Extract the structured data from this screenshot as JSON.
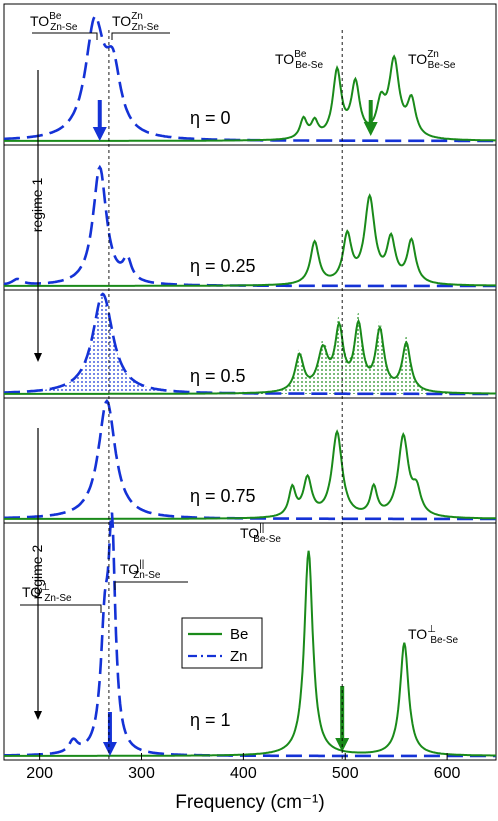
{
  "chart_data": {
    "type": "line",
    "xlabel": "Frequency (cm⁻¹)",
    "xlim": [
      165,
      648
    ],
    "x_ticks": [
      200,
      300,
      400,
      500,
      600
    ],
    "reference_line_x": [
      268,
      497
    ],
    "colors": {
      "Be": "#1a8a1a",
      "Zn": "#1432d6"
    },
    "legend": {
      "placement": "lower-center",
      "entries": [
        {
          "name": "Be",
          "style": "solid",
          "color": "#1a8a1a"
        },
        {
          "name": "Zn",
          "style": "dash-dot",
          "color": "#1432d6"
        }
      ]
    },
    "regimes": [
      {
        "label": "regime 1",
        "panels": [
          0,
          1,
          2
        ]
      },
      {
        "label": "regime 2",
        "panels": [
          3,
          4
        ]
      }
    ],
    "panels": [
      {
        "eta_label": "η = 0",
        "zn_peaks": [
          [
            254,
            1.0,
            11
          ],
          [
            272,
            0.55,
            9
          ]
        ],
        "be_peaks": [
          [
            459,
            0.22,
            4
          ],
          [
            470,
            0.18,
            4
          ],
          [
            492,
            0.75,
            5
          ],
          [
            510,
            0.6,
            5
          ],
          [
            535,
            0.35,
            5
          ],
          [
            548,
            0.85,
            6
          ],
          [
            565,
            0.4,
            5
          ]
        ],
        "zn_arrow_x": 259,
        "be_arrow_x": 525,
        "peak_labels": [
          {
            "base": "TO",
            "sup": "Be",
            "sub": "Zn-Se"
          },
          {
            "base": "TO",
            "sup": "Zn",
            "sub": "Zn-Se"
          },
          {
            "base": "TO",
            "sup": "Be",
            "sub": "Be-Se"
          },
          {
            "base": "TO",
            "sup": "Zn",
            "sub": "Be-Se"
          }
        ]
      },
      {
        "eta_label": "η = 0.25",
        "zn_peaks": [
          [
            259,
            1.0,
            8
          ],
          [
            286,
            0.18,
            5
          ],
          [
            178,
            0.05,
            6
          ]
        ],
        "be_peaks": [
          [
            470,
            0.45,
            5
          ],
          [
            502,
            0.5,
            5
          ],
          [
            524,
            0.9,
            6
          ],
          [
            545,
            0.45,
            5
          ],
          [
            565,
            0.45,
            5
          ]
        ],
        "zn_arrow_x": null,
        "be_arrow_x": null
      },
      {
        "eta_label": "η = 0.5",
        "zn_peaks": [
          [
            262,
            1.0,
            12
          ]
        ],
        "be_peaks": [
          [
            455,
            0.45,
            5
          ],
          [
            478,
            0.5,
            6
          ],
          [
            494,
            0.75,
            5
          ],
          [
            513,
            0.8,
            5
          ],
          [
            534,
            0.75,
            5
          ],
          [
            560,
            0.6,
            5
          ]
        ],
        "zn_arrow_x": null,
        "be_arrow_x": null,
        "shaded": true
      },
      {
        "eta_label": "η = 0.75",
        "zn_peaks": [
          [
            266,
            1.0,
            10
          ]
        ],
        "be_peaks": [
          [
            448,
            0.3,
            4
          ],
          [
            463,
            0.4,
            5
          ],
          [
            492,
            0.9,
            6
          ],
          [
            528,
            0.3,
            4
          ],
          [
            557,
            0.85,
            6
          ],
          [
            570,
            0.25,
            5
          ]
        ],
        "zn_arrow_x": null,
        "be_arrow_x": null
      },
      {
        "eta_label": "η = 1",
        "zn_peaks": [
          [
            264,
            0.55,
            5
          ],
          [
            271,
            1.0,
            4
          ],
          [
            233,
            0.06,
            5
          ]
        ],
        "be_peaks": [
          [
            464,
            1.0,
            5
          ],
          [
            558,
            0.55,
            5
          ]
        ],
        "zn_arrow_x": 269,
        "be_arrow_x": 497,
        "peak_labels": [
          {
            "base": "TO",
            "sup": "⊥",
            "sub": "Zn-Se"
          },
          {
            "base": "TO",
            "sup": "||",
            "sub": "Zn-Se"
          },
          {
            "base": "TO",
            "sup": "||",
            "sub": "Be-Se"
          },
          {
            "base": "TO",
            "sup": "⊥",
            "sub": "Be-Se"
          }
        ]
      }
    ]
  }
}
